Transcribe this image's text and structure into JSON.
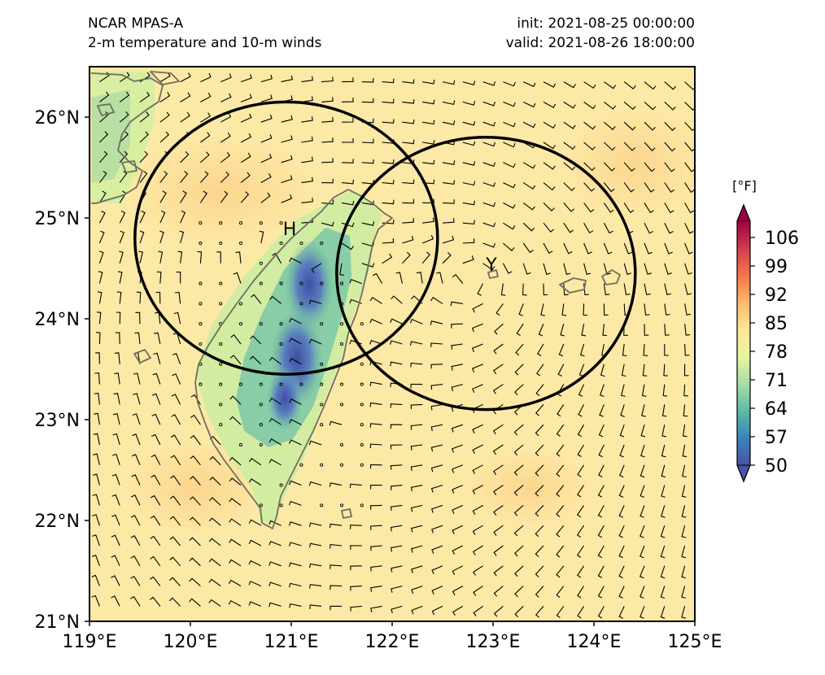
{
  "header": {
    "model": "NCAR MPAS-A",
    "field": "2-m temperature and 10-m winds",
    "init": "init: 2021-08-25 00:00:00",
    "valid": "valid: 2021-08-26 18:00:00"
  },
  "axes": {
    "lon_ticks": [
      "119°E",
      "120°E",
      "121°E",
      "122°E",
      "123°E",
      "124°E",
      "125°E"
    ],
    "lat_ticks": [
      "21°N",
      "22°N",
      "23°N",
      "24°N",
      "25°N",
      "26°N"
    ],
    "lon_range": [
      119,
      125
    ],
    "lat_range": [
      21,
      26.5
    ]
  },
  "colorbar": {
    "unit": "[°F]",
    "ticks": [
      "50",
      "57",
      "64",
      "71",
      "78",
      "85",
      "92",
      "99",
      "106"
    ],
    "range": [
      50,
      110
    ],
    "colormap": "Spectral_r",
    "colors": [
      "#3b4fa0",
      "#3f86bb",
      "#65bfa4",
      "#a8dda4",
      "#e5f4a0",
      "#fde58c",
      "#fcb66d",
      "#f07a4a",
      "#d2444a",
      "#9c0a43"
    ]
  },
  "markers": {
    "high_label": "H",
    "typhoon_label": "Y"
  },
  "circles": [
    {
      "name": "circle-around-high",
      "center_lon": 120.95,
      "center_lat": 24.8,
      "radius_lon": 1.5,
      "radius_lat": 1.35
    },
    {
      "name": "circle-around-typhoon",
      "center_lon": 122.93,
      "center_lat": 24.45,
      "radius_lon": 1.48,
      "radius_lat": 1.35
    }
  ],
  "colors": {
    "background_field": "#fde8a4",
    "coastline": "#6e6e60",
    "circle": "#000000",
    "wind_barb": "#000000"
  }
}
